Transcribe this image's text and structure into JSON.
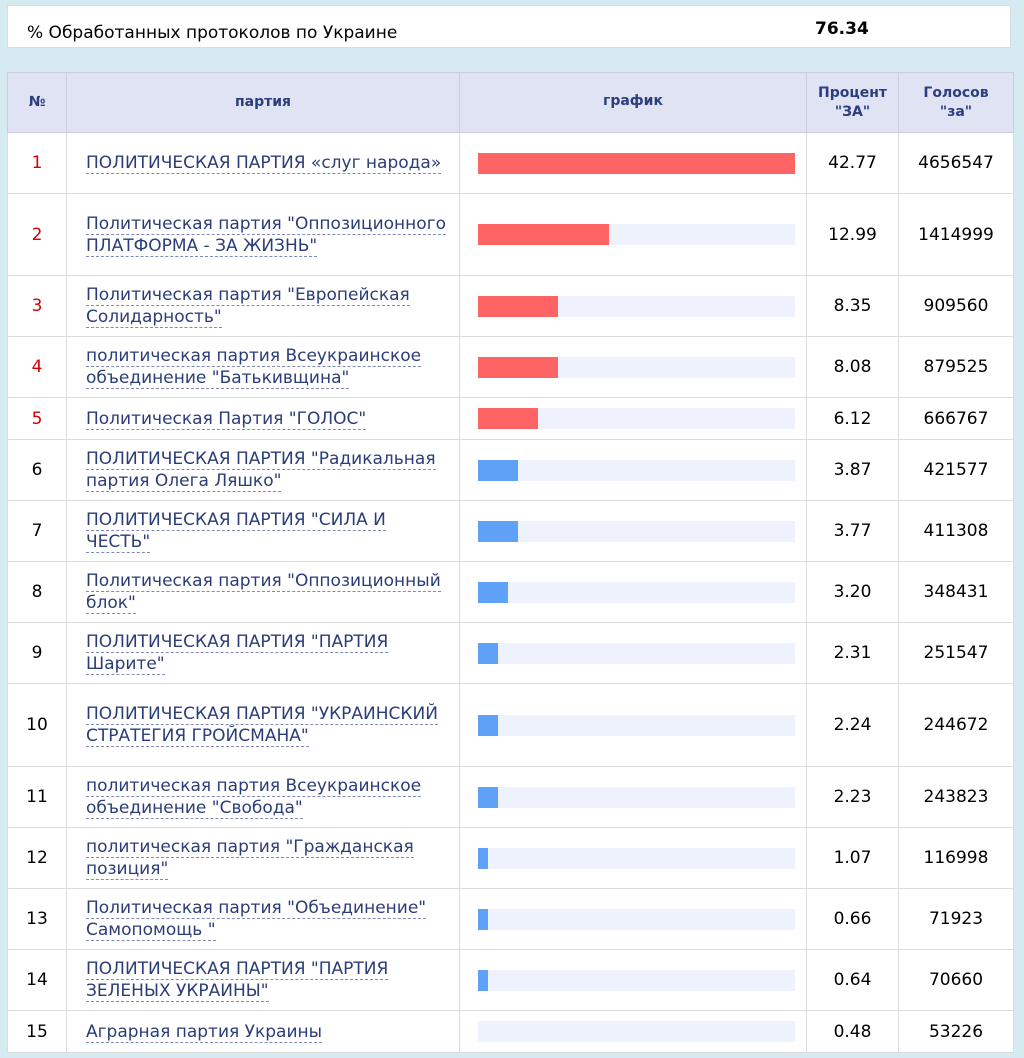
{
  "summary": {
    "label": "% Обработанных протоколов по Украине",
    "value": "76.34"
  },
  "colors": {
    "top_bar": "#ff6464",
    "other_bar": "#5ea1f7",
    "track": "#eef2fc",
    "header_bg": "#dfe3f3",
    "header_text": "#2c3e7c",
    "party_link": "#2b3d78",
    "top_rank": "#d40000"
  },
  "table": {
    "headers": {
      "num": "№",
      "party": "партия",
      "chart": "график",
      "percent_line1": "Процент",
      "percent_line2": "\"ЗА\"",
      "votes_line1": "Голосов",
      "votes_line2": "\"за\""
    },
    "rows": [
      {
        "num": "1",
        "party": "ПОЛИТИЧЕСКАЯ ПАРТИЯ «слуг народа»",
        "percent": "42.77",
        "votes": "4656547",
        "share": 1.0,
        "passed": true
      },
      {
        "num": "2",
        "party": "Политическая партия \"Оппозиционного ПЛАТФОРМА - ЗА ЖИЗНЬ\"",
        "percent": "12.99",
        "votes": "1414999",
        "share": 0.414,
        "passed": true
      },
      {
        "num": "3",
        "party": "Политическая партия \"Европейская Солидарность\"",
        "percent": "8.35",
        "votes": "909560",
        "share": 0.253,
        "passed": true
      },
      {
        "num": "4",
        "party": "политическая партия Всеукраинское объединение \"Батькивщина\"",
        "percent": "8.08",
        "votes": "879525",
        "share": 0.253,
        "passed": true
      },
      {
        "num": "5",
        "party": "Политическая Партия \"ГОЛОС\"",
        "percent": "6.12",
        "votes": "666767",
        "share": 0.189,
        "passed": true
      },
      {
        "num": "6",
        "party": "ПОЛИТИЧЕСКАЯ ПАРТИЯ \"Радикальная партия Олега Ляшко\"",
        "percent": "3.87",
        "votes": "421577",
        "share": 0.126,
        "passed": false
      },
      {
        "num": "7",
        "party": "ПОЛИТИЧЕСКАЯ ПАРТИЯ \"СИЛА И ЧЕСТЬ\"",
        "percent": "3.77",
        "votes": "411308",
        "share": 0.126,
        "passed": false
      },
      {
        "num": "8",
        "party": "Политическая партия \"Оппозиционный блок\"",
        "percent": "3.20",
        "votes": "348431",
        "share": 0.095,
        "passed": false
      },
      {
        "num": "9",
        "party": "ПОЛИТИЧЕСКАЯ ПАРТИЯ \"ПАРТИЯ Шарите\"",
        "percent": "2.31",
        "votes": "251547",
        "share": 0.063,
        "passed": false
      },
      {
        "num": "10",
        "party": "ПОЛИТИЧЕСКАЯ ПАРТИЯ \"УКРАИНСКИЙ СТРАТЕГИЯ ГРОЙСМАНА\"",
        "percent": "2.24",
        "votes": "244672",
        "share": 0.063,
        "passed": false
      },
      {
        "num": "11",
        "party": "политическая партия Всеукраинское объединение \"Свобода\"",
        "percent": "2.23",
        "votes": "243823",
        "share": 0.063,
        "passed": false
      },
      {
        "num": "12",
        "party": "политическая партия \"Гражданская позиция\"",
        "percent": "1.07",
        "votes": "116998",
        "share": 0.032,
        "passed": false
      },
      {
        "num": "13",
        "party": "Политическая партия \"Объединение\" Самопомощь \"",
        "percent": "0.66",
        "votes": "71923",
        "share": 0.032,
        "passed": false
      },
      {
        "num": "14",
        "party": "ПОЛИТИЧЕСКАЯ ПАРТИЯ \"ПАРТИЯ ЗЕЛЕНЫХ УКРАИНЫ\"",
        "percent": "0.64",
        "votes": "70660",
        "share": 0.032,
        "passed": false
      },
      {
        "num": "15",
        "party": "Аграрная партия Украины",
        "percent": "0.48",
        "votes": "53226",
        "share": 0.0,
        "passed": false
      }
    ]
  }
}
